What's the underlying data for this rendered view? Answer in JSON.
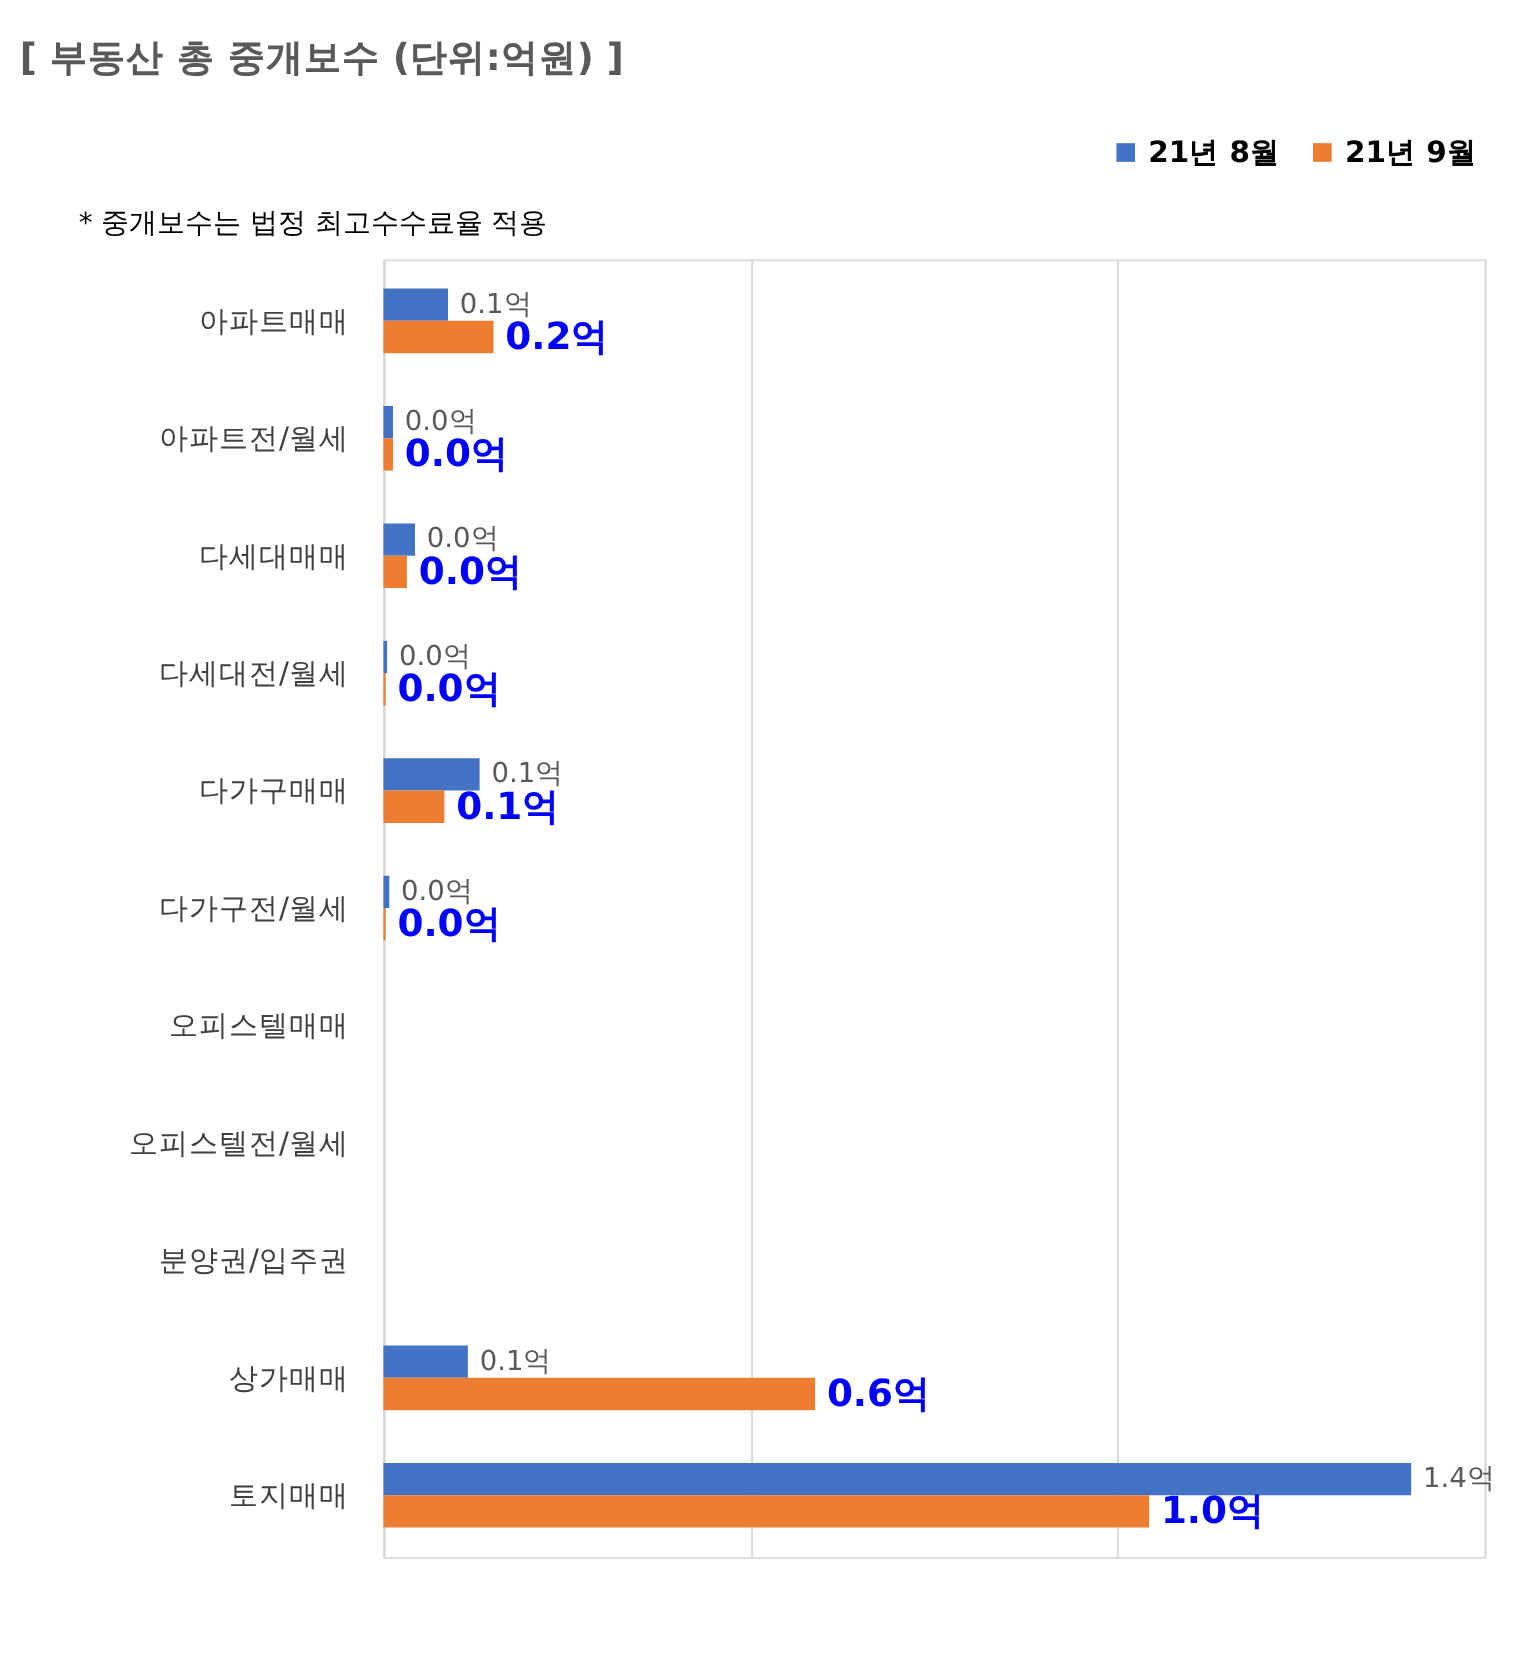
{
  "chart_data": {
    "type": "bar",
    "orientation": "horizontal",
    "title": "[ 부동산 총 중개보수 (단위:억원) ]",
    "annotations": [
      "* 중개보수는 법정 최고수수료율 적용"
    ],
    "categories": [
      "아파트매매",
      "아파트전/월세",
      "다세대매매",
      "다세대전/월세",
      "다가구매매",
      "다가구전/월세",
      "오피스텔매매",
      "오피스텔전/월세",
      "분양권/입주권",
      "상가매매",
      "토지매매"
    ],
    "series": [
      {
        "name": "21년 8월",
        "color": "#4472c4",
        "values": [
          0.088,
          0.013,
          0.043,
          0.005,
          0.131,
          0.008,
          null,
          null,
          null,
          0.115,
          1.4
        ],
        "value_labels": [
          "0.1억",
          "0.0억",
          "0.0억",
          "0.0억",
          "0.1억",
          "0.0억",
          null,
          null,
          null,
          "0.1억",
          "1.4억"
        ]
      },
      {
        "name": "21년 9월",
        "color": "#ed7d31",
        "values": [
          0.15,
          0.013,
          0.032,
          0.003,
          0.083,
          0.003,
          null,
          null,
          null,
          0.588,
          1.043
        ],
        "value_labels": [
          "0.2억",
          "0.0억",
          "0.0억",
          "0.0억",
          "0.1억",
          "0.0억",
          null,
          null,
          null,
          "0.6억",
          "1.0억"
        ]
      }
    ],
    "xlim": [
      0,
      1.5
    ],
    "xticks": [
      {
        "value": 0,
        "label": null
      },
      {
        "value": 0.5,
        "label": null
      },
      {
        "value": 1,
        "label": null
      },
      {
        "value": 1.5,
        "label": null
      }
    ],
    "grid": "x",
    "legend": "top right",
    "tick_labels": "y"
  }
}
